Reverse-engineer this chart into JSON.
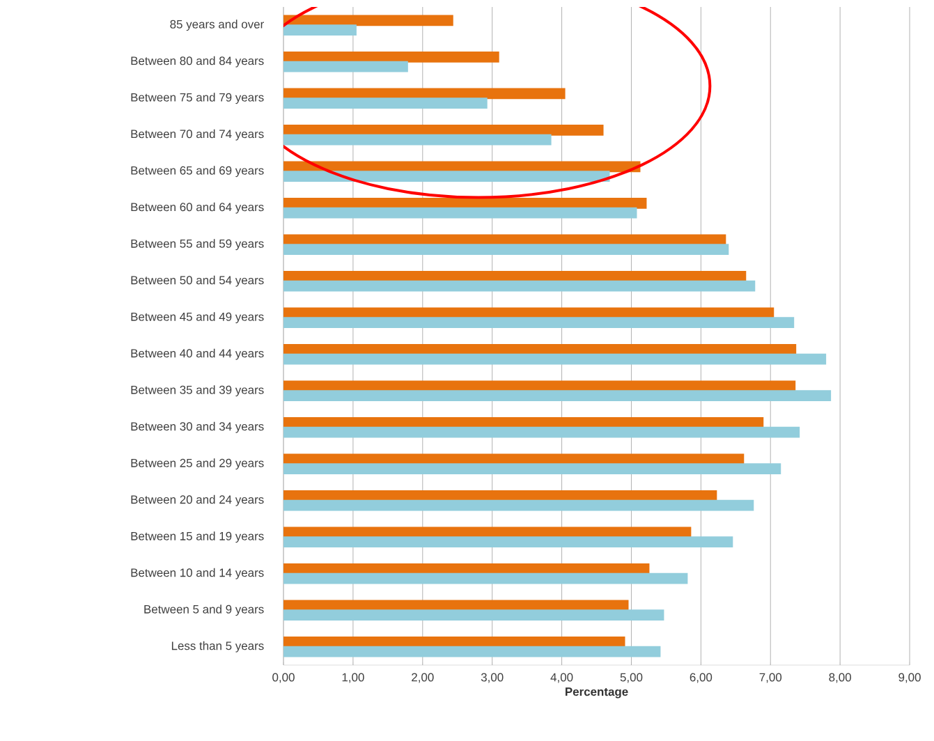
{
  "chart_data": {
    "type": "bar",
    "orientation": "horizontal",
    "xlabel": "Percentage",
    "categories": [
      "85 years and over",
      "Between 80 and 84 years",
      "Between 75 and 79 years",
      "Between 70 and 74 years",
      "Between 65 and 69 years",
      "Between 60 and 64 years",
      "Between 55 and 59 years",
      "Between 50 and 54 years",
      "Between 45 and 49 years",
      "Between 40 and 44 years",
      "Between 35 and 39 years",
      "Between 30 and 34 years",
      "Between 25 and 29 years",
      "Between 20 and 24 years",
      "Between 15 and 19 years",
      "Between 10 and 14 years",
      "Between 5 and 9 years",
      "Less than 5 years"
    ],
    "series": [
      {
        "color": "#e8730e",
        "values": [
          2.44,
          3.1,
          4.05,
          4.6,
          5.13,
          5.22,
          6.36,
          6.65,
          7.05,
          7.37,
          7.36,
          6.9,
          6.62,
          6.23,
          5.86,
          5.26,
          4.96,
          4.91
        ]
      },
      {
        "color": "#92cddc",
        "values": [
          1.05,
          1.79,
          2.93,
          3.85,
          4.69,
          5.08,
          6.4,
          6.78,
          7.34,
          7.8,
          7.87,
          7.42,
          7.15,
          6.76,
          6.46,
          5.81,
          5.47,
          5.42
        ]
      }
    ],
    "xlim": [
      0,
      9
    ],
    "xticks": [
      {
        "value": 0,
        "label": "0,00"
      },
      {
        "value": 1,
        "label": "1,00"
      },
      {
        "value": 2,
        "label": "2,00"
      },
      {
        "value": 3,
        "label": "3,00"
      },
      {
        "value": 4,
        "label": "4,00"
      },
      {
        "value": 5,
        "label": "5,00"
      },
      {
        "value": 6,
        "label": "6,00"
      },
      {
        "value": 7,
        "label": "7,00"
      },
      {
        "value": 8,
        "label": "8,00"
      },
      {
        "value": 9,
        "label": "9,00"
      }
    ],
    "grid": "x"
  }
}
